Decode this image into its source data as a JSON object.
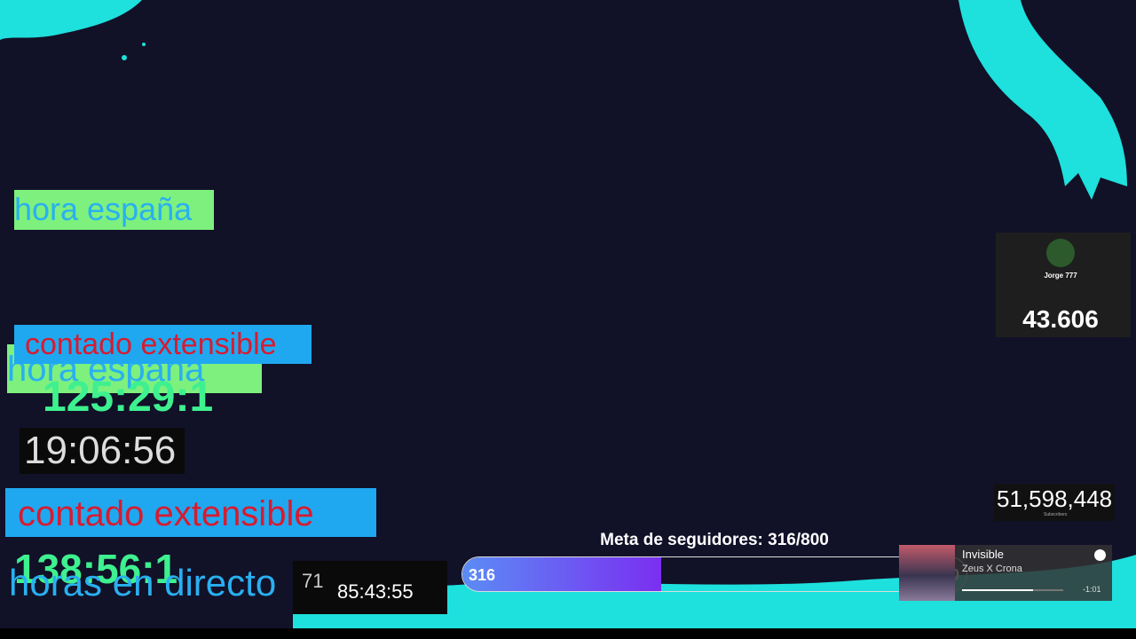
{
  "overlay": {
    "timers": {
      "label_top": "hora españa",
      "counter_label_1": "contado extensible",
      "label_overlap": "hora españa",
      "counter_1": "125:29:1",
      "clock": "19:06:56",
      "counter_label_2": "contado extensible",
      "counter_2": "138:56:1",
      "live_label": "horas en directo",
      "partial_count": "71",
      "live_timer": "85:43:55"
    },
    "profile": {
      "name": "Jorge 777",
      "count": "43.606"
    },
    "subscribers": {
      "count": "51,598,448",
      "label": "Subscribers"
    },
    "goal": {
      "title": "Meta de seguidores: 316/800",
      "current": 316,
      "target": 800
    },
    "music": {
      "title": "Invisible",
      "artist": "Zeus X Crona",
      "remaining": "-1:01"
    }
  }
}
